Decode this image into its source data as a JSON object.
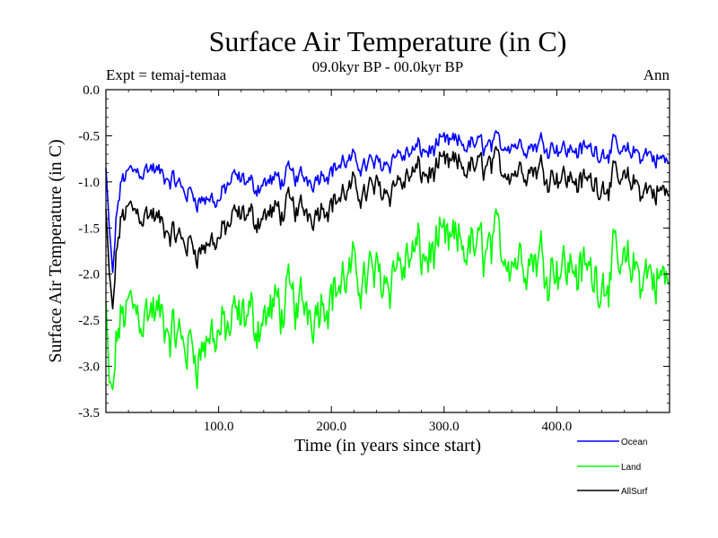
{
  "chart_data": {
    "type": "line",
    "title": "Surface Air Temperature (in C)",
    "subtitle_left": "Expt = temaj-temaa",
    "subtitle_center": "09.0kyr BP - 00.0kyr BP",
    "subtitle_right": "Ann",
    "xlabel": "Time (in years since start)",
    "ylabel": "Surface Air Temperature (in C)",
    "xlim": [
      0,
      500
    ],
    "ylim": [
      -3.5,
      0.0
    ],
    "xticks": [
      100,
      200,
      300,
      400
    ],
    "xtick_labels": [
      "100.0",
      "200.0",
      "300.0",
      "400.0"
    ],
    "yticks": [
      0.0,
      -0.5,
      -1.0,
      -1.5,
      -2.0,
      -2.5,
      -3.0,
      -3.5
    ],
    "ytick_labels": [
      "0.0",
      "-0.5",
      "-1.0",
      "-1.5",
      "-2.0",
      "-2.5",
      "-3.0",
      "-3.5"
    ],
    "series": [
      {
        "name": "Ocean",
        "color": "#0000ff",
        "x": [
          0,
          3,
          6,
          10,
          15,
          20,
          30,
          40,
          50,
          60,
          70,
          80,
          90,
          100,
          110,
          120,
          130,
          140,
          150,
          160,
          170,
          180,
          190,
          200,
          210,
          220,
          230,
          240,
          250,
          260,
          270,
          280,
          290,
          300,
          310,
          320,
          330,
          340,
          350,
          360,
          370,
          380,
          390,
          400,
          410,
          420,
          430,
          440,
          450,
          460,
          470,
          480,
          490,
          500
        ],
        "values": [
          -0.85,
          -1.5,
          -2.0,
          -1.3,
          -0.95,
          -0.9,
          -0.85,
          -0.85,
          -0.95,
          -1.0,
          -1.1,
          -1.15,
          -1.2,
          -1.2,
          -1.0,
          -1.0,
          -1.05,
          -1.0,
          -1.0,
          -0.95,
          -0.95,
          -0.95,
          -0.9,
          -0.85,
          -0.8,
          -0.8,
          -0.8,
          -0.8,
          -0.75,
          -0.7,
          -0.7,
          -0.65,
          -0.65,
          -0.6,
          -0.6,
          -0.6,
          -0.6,
          -0.6,
          -0.6,
          -0.55,
          -0.6,
          -0.6,
          -0.55,
          -0.6,
          -0.65,
          -0.65,
          -0.65,
          -0.65,
          -0.65,
          -0.7,
          -0.7,
          -0.7,
          -0.75,
          -0.8
        ]
      },
      {
        "name": "Land",
        "color": "#00ff00",
        "x": [
          0,
          3,
          6,
          10,
          15,
          20,
          30,
          40,
          50,
          60,
          70,
          80,
          90,
          100,
          110,
          120,
          130,
          140,
          150,
          160,
          170,
          180,
          190,
          200,
          210,
          220,
          230,
          240,
          250,
          260,
          270,
          280,
          290,
          300,
          310,
          320,
          330,
          340,
          350,
          360,
          370,
          380,
          390,
          400,
          410,
          420,
          430,
          440,
          450,
          460,
          470,
          480,
          490,
          500
        ],
        "values": [
          -2.3,
          -3.2,
          -3.3,
          -2.7,
          -2.45,
          -2.35,
          -2.35,
          -2.4,
          -2.55,
          -2.7,
          -2.75,
          -2.8,
          -2.75,
          -2.6,
          -2.6,
          -2.55,
          -2.5,
          -2.45,
          -2.4,
          -2.35,
          -2.35,
          -2.3,
          -2.25,
          -2.15,
          -2.1,
          -2.05,
          -2.0,
          -2.0,
          -1.95,
          -1.9,
          -1.85,
          -1.8,
          -1.75,
          -1.75,
          -1.75,
          -1.7,
          -1.75,
          -1.7,
          -1.7,
          -1.75,
          -1.8,
          -1.8,
          -1.8,
          -1.85,
          -1.9,
          -1.95,
          -2.0,
          -2.0,
          -1.95,
          -1.95,
          -2.0,
          -2.0,
          -2.05,
          -2.1
        ]
      },
      {
        "name": "AllSurf",
        "color": "#000000",
        "x": [
          0,
          3,
          6,
          10,
          15,
          20,
          30,
          40,
          50,
          60,
          70,
          80,
          90,
          100,
          110,
          120,
          130,
          140,
          150,
          160,
          170,
          180,
          190,
          200,
          210,
          220,
          230,
          240,
          250,
          260,
          270,
          280,
          290,
          300,
          310,
          320,
          330,
          340,
          350,
          360,
          370,
          380,
          390,
          400,
          410,
          420,
          430,
          440,
          450,
          460,
          470,
          480,
          490,
          500
        ],
        "values": [
          -1.3,
          -2.0,
          -2.4,
          -1.7,
          -1.35,
          -1.3,
          -1.3,
          -1.35,
          -1.5,
          -1.6,
          -1.65,
          -1.7,
          -1.7,
          -1.6,
          -1.45,
          -1.4,
          -1.4,
          -1.35,
          -1.35,
          -1.3,
          -1.3,
          -1.3,
          -1.25,
          -1.2,
          -1.15,
          -1.1,
          -1.1,
          -1.05,
          -1.05,
          -1.0,
          -0.95,
          -0.9,
          -0.9,
          -0.85,
          -0.85,
          -0.85,
          -0.85,
          -0.8,
          -0.85,
          -0.85,
          -0.85,
          -0.85,
          -0.85,
          -0.9,
          -0.95,
          -1.0,
          -1.0,
          -1.0,
          -1.0,
          -1.0,
          -1.05,
          -1.1,
          -1.1,
          -1.15
        ]
      }
    ],
    "legend": [
      {
        "label": "Ocean",
        "color": "#0000ff"
      },
      {
        "label": "Land",
        "color": "#00ff00"
      },
      {
        "label": "AllSurf",
        "color": "#000000"
      }
    ]
  }
}
